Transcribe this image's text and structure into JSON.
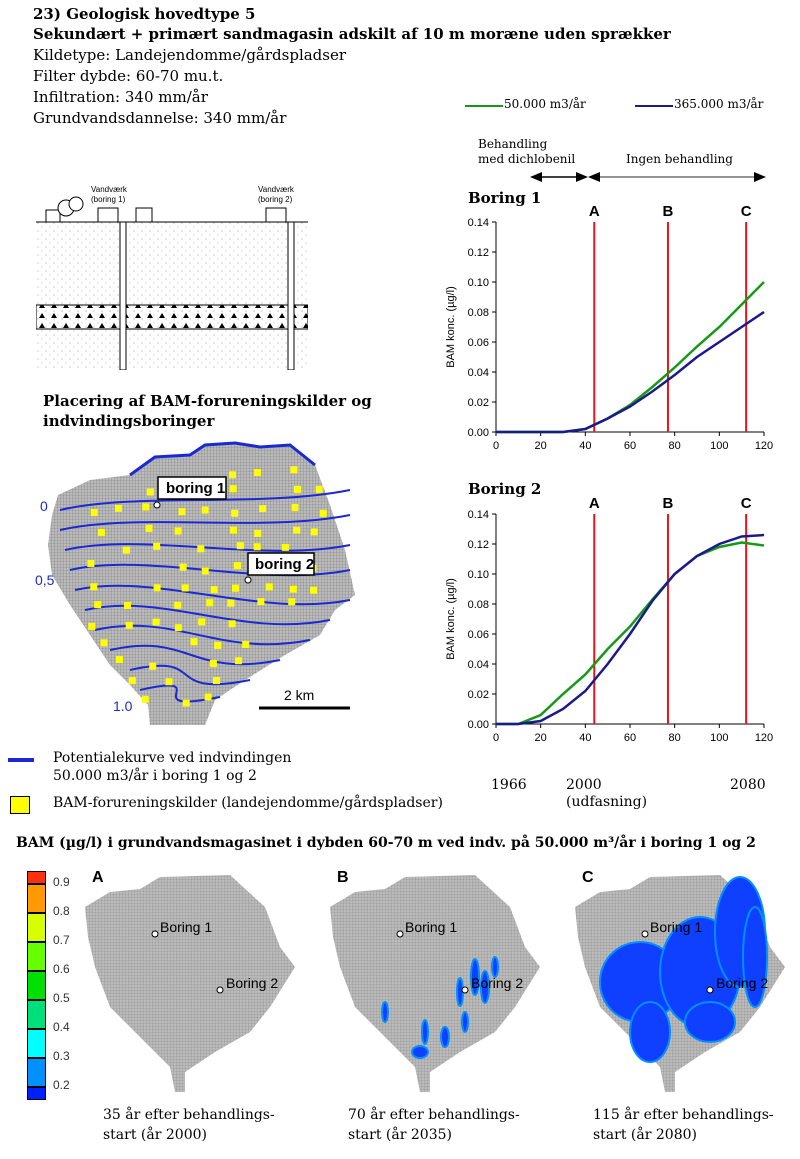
{
  "header": {
    "title": "23) Geologisk hovedtype 5",
    "subtitle": "Sekundært + primært sandmagasin adskilt af 10 m moræne uden sprækker",
    "lines": [
      "Kildetype: Landejendomme/gårdspladser",
      "Filter dybde: 60-70 mu.t.",
      "Infiltration: 340 mm/år",
      "Grundvandsdannelse: 340 mm/år"
    ]
  },
  "cross_section": {
    "label1": "Vandværk",
    "label1b": "(boring 1)",
    "label2": "Vandværk",
    "label2b": "(boring 2)"
  },
  "map": {
    "title1": "Placering af BAM-forureningskilder og",
    "title2": "indvindingsboringer",
    "boring1": "boring 1",
    "boring2": "boring 2",
    "contour_labels": [
      "0",
      "0,5",
      "1.0"
    ],
    "scale": "2 km"
  },
  "legend": {
    "potential_line1": "Potentialekurve ved indvindingen",
    "potential_line2": "50.000 m3/år i boring 1 og 2",
    "sources": "BAM-forureningskilder (landejendomme/gårdspladser)"
  },
  "colors": {
    "green": "#169a16",
    "blue": "#1a1a8c",
    "red": "#e8141c",
    "contour": "#1a2ad0",
    "source": "#ffff00"
  },
  "chart_data": [
    {
      "type": "line",
      "title": "Boring 1",
      "ylabel": "BAM konc. (µg/l)",
      "xlim": [
        0,
        120
      ],
      "ylim": [
        0,
        0.14
      ],
      "xticks": [
        "0",
        "20",
        "40",
        "60",
        "80",
        "100",
        "120"
      ],
      "yticks": [
        "0.00",
        "0.02",
        "0.04",
        "0.06",
        "0.08",
        "0.10",
        "0.12",
        "0.14"
      ],
      "markers": [
        {
          "label": "A",
          "x": 44
        },
        {
          "label": "B",
          "x": 77
        },
        {
          "label": "C",
          "x": 112
        }
      ],
      "series": [
        {
          "name": "50.000 m3/år",
          "color": "green",
          "x": [
            0,
            30,
            40,
            50,
            60,
            70,
            80,
            90,
            100,
            110,
            120
          ],
          "y": [
            0,
            0,
            0.002,
            0.009,
            0.018,
            0.03,
            0.043,
            0.057,
            0.07,
            0.085,
            0.1
          ]
        },
        {
          "name": "365.000 m3/år",
          "color": "blue",
          "x": [
            0,
            30,
            40,
            50,
            60,
            70,
            80,
            90,
            100,
            110,
            120
          ],
          "y": [
            0,
            0,
            0.002,
            0.009,
            0.017,
            0.027,
            0.038,
            0.05,
            0.06,
            0.07,
            0.08
          ]
        }
      ]
    },
    {
      "type": "line",
      "title": "Boring 2",
      "ylabel": "BAM konc. (µg/l)",
      "xlim": [
        0,
        120
      ],
      "ylim": [
        0,
        0.14
      ],
      "xticks": [
        "0",
        "20",
        "40",
        "60",
        "80",
        "100",
        "120"
      ],
      "yticks": [
        "0.00",
        "0.02",
        "0.04",
        "0.06",
        "0.08",
        "0.10",
        "0.12",
        "0.14"
      ],
      "markers": [
        {
          "label": "A",
          "x": 44
        },
        {
          "label": "B",
          "x": 77
        },
        {
          "label": "C",
          "x": 112
        }
      ],
      "series": [
        {
          "name": "50.000 m3/år",
          "color": "green",
          "x": [
            0,
            10,
            20,
            30,
            40,
            50,
            60,
            70,
            80,
            90,
            100,
            110,
            120
          ],
          "y": [
            0,
            0,
            0.006,
            0.02,
            0.033,
            0.05,
            0.065,
            0.083,
            0.1,
            0.112,
            0.118,
            0.121,
            0.119
          ]
        },
        {
          "name": "365.000 m3/år",
          "color": "blue",
          "x": [
            0,
            10,
            20,
            30,
            40,
            50,
            60,
            70,
            80,
            90,
            100,
            110,
            120
          ],
          "y": [
            0,
            0,
            0.002,
            0.01,
            0.022,
            0.04,
            0.06,
            0.082,
            0.1,
            0.112,
            0.12,
            0.125,
            0.126
          ]
        }
      ]
    }
  ],
  "charts_legend": {
    "s1": "50.000 m3/år",
    "s2": "365.000 m3/år",
    "phase1a": "Behandling",
    "phase1b": "med dichlobenil",
    "phase2": "Ingen behandling"
  },
  "timeline": {
    "y1": "1966",
    "y2": "2000",
    "y2b": "(udfasning)",
    "y3": "2080"
  },
  "bottom": {
    "title": "BAM (µg/l) i grundvandsmagasinet i dybden 60-70 m ved indv. på 50.000 m³/år i boring 1 og 2",
    "colorbar": [
      {
        "v": "0.9",
        "c": "#ff3010"
      },
      {
        "v": "0.8",
        "c": "#ff9a00"
      },
      {
        "v": "0.7",
        "c": "#d8ff00"
      },
      {
        "v": "0.6",
        "c": "#66ff00"
      },
      {
        "v": "0.5",
        "c": "#00e000"
      },
      {
        "v": "0.4",
        "c": "#00e07a"
      },
      {
        "v": "0.3",
        "c": "#00ffff"
      },
      {
        "v": "0.2",
        "c": "#0090ff"
      },
      {
        "v": "",
        "c": "#0020ff"
      }
    ],
    "panels": [
      {
        "letter": "A",
        "b1": "Boring 1",
        "b2": "Boring 2",
        "cap1": "35 år efter behandlings-",
        "cap2": "start (år 2000)"
      },
      {
        "letter": "B",
        "b1": "Boring 1",
        "b2": "Boring 2",
        "cap1": "70 år efter behandlings-",
        "cap2": "start (år 2035)"
      },
      {
        "letter": "C",
        "b1": "Boring 1",
        "b2": "Boring 2",
        "cap1": "115 år efter behandlings-",
        "cap2": "start (år 2080)"
      }
    ]
  }
}
